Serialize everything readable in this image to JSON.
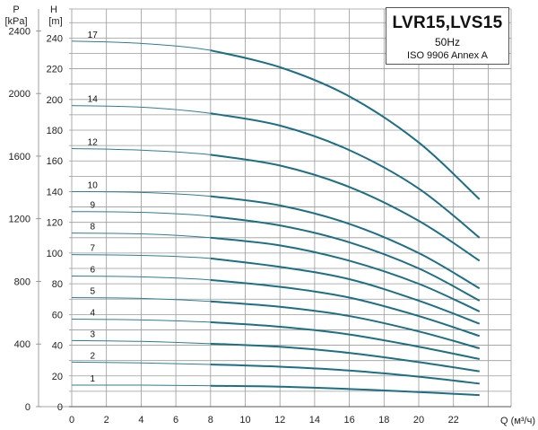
{
  "chart_data": {
    "type": "line",
    "title": "LVR15,LVS15",
    "frequency": "50Hz",
    "standard": "ISO 9906 Annex A",
    "xlabel": "Q (м³/ч)",
    "ylabel_left_unit": "P",
    "ylabel_left_sub": "[kPa]",
    "ylabel_right_unit": "H",
    "ylabel_right_sub": "[m]",
    "x_ticks": [
      "0",
      "2",
      "4",
      "6",
      "8",
      "10",
      "12",
      "14",
      "16",
      "18",
      "20",
      "22"
    ],
    "h_ticks": [
      "0",
      "20",
      "40",
      "60",
      "80",
      "100",
      "120",
      "140",
      "160",
      "180",
      "200",
      "220",
      "240"
    ],
    "p_ticks": [
      "0",
      "400",
      "800",
      "1200",
      "1600",
      "2000",
      "2400"
    ],
    "xlim": [
      0,
      25
    ],
    "hlim": [
      0,
      250
    ],
    "series": [
      {
        "name": "1",
        "points": [
          [
            0,
            14
          ],
          [
            4,
            14
          ],
          [
            8,
            13.6
          ],
          [
            12,
            13
          ],
          [
            16,
            11.5
          ],
          [
            20,
            9.5
          ],
          [
            23.5,
            7.5
          ]
        ]
      },
      {
        "name": "2",
        "points": [
          [
            0,
            29
          ],
          [
            4,
            28.5
          ],
          [
            8,
            27.5
          ],
          [
            12,
            26
          ],
          [
            16,
            23.5
          ],
          [
            20,
            19.5
          ],
          [
            23.5,
            15
          ]
        ]
      },
      {
        "name": "3",
        "points": [
          [
            0,
            43
          ],
          [
            4,
            42.5
          ],
          [
            8,
            41
          ],
          [
            12,
            39
          ],
          [
            16,
            35
          ],
          [
            20,
            29
          ],
          [
            23.5,
            23
          ]
        ]
      },
      {
        "name": "4",
        "points": [
          [
            0,
            57
          ],
          [
            4,
            56.5
          ],
          [
            8,
            55
          ],
          [
            12,
            52
          ],
          [
            16,
            47
          ],
          [
            20,
            39
          ],
          [
            23.5,
            31
          ]
        ]
      },
      {
        "name": "5",
        "points": [
          [
            0,
            71
          ],
          [
            4,
            70.5
          ],
          [
            8,
            68.5
          ],
          [
            12,
            65
          ],
          [
            16,
            59
          ],
          [
            20,
            49
          ],
          [
            23.5,
            38
          ]
        ]
      },
      {
        "name": "6",
        "points": [
          [
            0,
            85
          ],
          [
            4,
            84.5
          ],
          [
            8,
            82.5
          ],
          [
            12,
            78
          ],
          [
            16,
            71
          ],
          [
            20,
            59
          ],
          [
            23.5,
            46
          ]
        ]
      },
      {
        "name": "7",
        "points": [
          [
            0,
            99
          ],
          [
            4,
            98.5
          ],
          [
            8,
            96.5
          ],
          [
            12,
            91
          ],
          [
            16,
            83
          ],
          [
            20,
            69
          ],
          [
            23.5,
            54
          ]
        ]
      },
      {
        "name": "8",
        "points": [
          [
            0,
            113
          ],
          [
            4,
            112.5
          ],
          [
            8,
            110
          ],
          [
            12,
            105
          ],
          [
            16,
            95
          ],
          [
            20,
            80
          ],
          [
            23.5,
            62
          ]
        ]
      },
      {
        "name": "9",
        "points": [
          [
            0,
            127
          ],
          [
            4,
            126.5
          ],
          [
            8,
            124
          ],
          [
            12,
            118
          ],
          [
            16,
            107
          ],
          [
            20,
            90
          ],
          [
            23.5,
            69
          ]
        ]
      },
      {
        "name": "10",
        "points": [
          [
            0,
            140
          ],
          [
            4,
            139.5
          ],
          [
            8,
            137
          ],
          [
            12,
            131
          ],
          [
            16,
            119
          ],
          [
            20,
            100
          ],
          [
            23.5,
            77
          ]
        ]
      },
      {
        "name": "12",
        "points": [
          [
            0,
            168
          ],
          [
            4,
            167
          ],
          [
            8,
            164
          ],
          [
            12,
            157
          ],
          [
            16,
            143
          ],
          [
            20,
            121
          ],
          [
            23.5,
            95
          ]
        ]
      },
      {
        "name": "14",
        "points": [
          [
            0,
            196
          ],
          [
            4,
            195
          ],
          [
            8,
            191
          ],
          [
            12,
            183
          ],
          [
            16,
            167
          ],
          [
            20,
            142
          ],
          [
            23.5,
            110
          ]
        ]
      },
      {
        "name": "17",
        "points": [
          [
            0,
            238
          ],
          [
            4,
            236.5
          ],
          [
            8,
            232
          ],
          [
            12,
            221
          ],
          [
            16,
            202
          ],
          [
            20,
            172
          ],
          [
            23.5,
            135
          ]
        ]
      }
    ]
  }
}
